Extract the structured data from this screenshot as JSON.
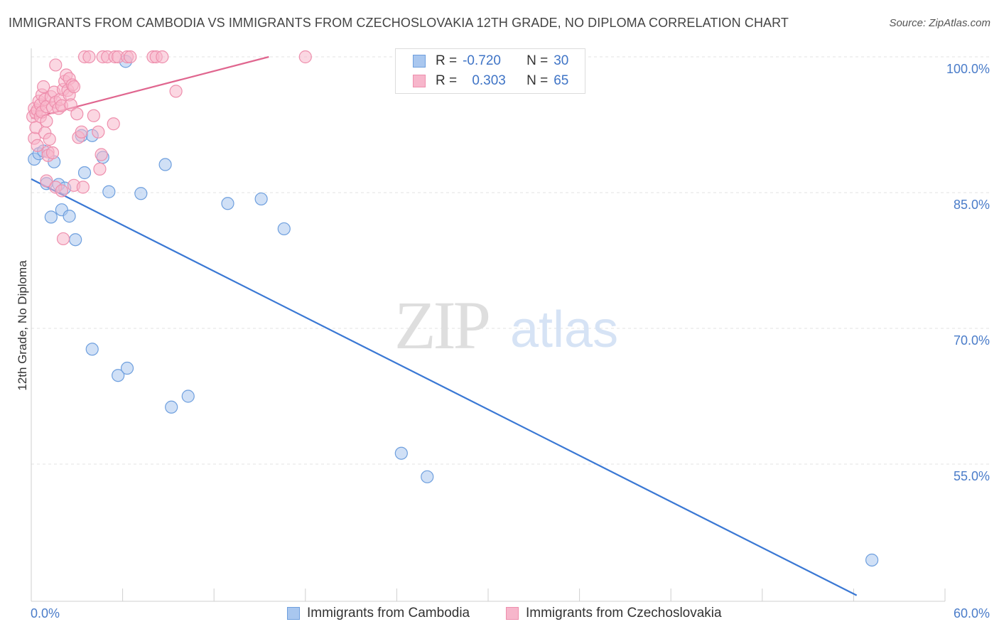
{
  "title": "IMMIGRANTS FROM CAMBODIA VS IMMIGRANTS FROM CZECHOSLOVAKIA 12TH GRADE, NO DIPLOMA CORRELATION CHART",
  "source": "Source: ZipAtlas.com",
  "watermark": {
    "zip": "ZIP",
    "atlas": "atlas"
  },
  "legend": {
    "rows": [
      {
        "r_label": "R =",
        "r_value": "-0.720",
        "n_label": "N =",
        "n_value": "30"
      },
      {
        "r_label": "R =",
        "r_value": "0.303",
        "n_label": "N =",
        "n_value": "65"
      }
    ]
  },
  "colors": {
    "blue_fill": "#a9c7ef",
    "blue_stroke": "#6e9fde",
    "blue_line": "#3a78d4",
    "pink_fill": "#f7b6cb",
    "pink_stroke": "#ee8fad",
    "pink_line": "#e0668f",
    "grid": "#e3e3e3",
    "tick_label": "#4a7cc9"
  },
  "chart_data": {
    "type": "scatter",
    "title": "IMMIGRANTS FROM CAMBODIA VS IMMIGRANTS FROM CZECHOSLOVAKIA 12TH GRADE, NO DIPLOMA CORRELATION CHART",
    "xlabel": "",
    "ylabel": "12th Grade, No Diploma",
    "xlim": [
      0,
      60
    ],
    "ylim": [
      40,
      101
    ],
    "x_tick_labels": {
      "left": "0.0%",
      "right": "60.0%"
    },
    "y_ticks": [
      {
        "value": 100,
        "label": "100.0%"
      },
      {
        "value": 85,
        "label": "85.0%"
      },
      {
        "value": 70,
        "label": "70.0%"
      },
      {
        "value": 55,
        "label": "55.0%"
      }
    ],
    "grid": true,
    "series": [
      {
        "name": "Immigrants from Cambodia",
        "color": "blue",
        "points": [
          [
            0.2,
            88.7
          ],
          [
            0.5,
            89.3
          ],
          [
            0.8,
            89.6
          ],
          [
            1.0,
            86.0
          ],
          [
            1.3,
            82.3
          ],
          [
            1.5,
            88.4
          ],
          [
            1.8,
            85.9
          ],
          [
            2.0,
            83.1
          ],
          [
            2.2,
            85.5
          ],
          [
            2.5,
            82.4
          ],
          [
            2.9,
            79.8
          ],
          [
            3.3,
            91.3
          ],
          [
            3.5,
            87.2
          ],
          [
            4.0,
            91.3
          ],
          [
            4.7,
            88.9
          ],
          [
            5.1,
            85.1
          ],
          [
            7.2,
            84.9
          ],
          [
            6.2,
            99.5
          ],
          [
            8.8,
            88.1
          ],
          [
            12.9,
            83.8
          ],
          [
            15.1,
            84.3
          ],
          [
            16.6,
            81.0
          ],
          [
            4.0,
            67.7
          ],
          [
            5.7,
            64.8
          ],
          [
            6.3,
            65.6
          ],
          [
            9.2,
            61.3
          ],
          [
            10.3,
            62.5
          ],
          [
            24.3,
            56.2
          ],
          [
            26.0,
            53.6
          ],
          [
            55.2,
            44.4
          ]
        ],
        "trend": {
          "x0": 0.0,
          "y0": 86.5,
          "x1": 54.2,
          "y1": 40.5
        }
      },
      {
        "name": "Immigrants from Czechoslovakia",
        "color": "pink",
        "points": [
          [
            0.1,
            93.4
          ],
          [
            0.2,
            91.0
          ],
          [
            0.2,
            94.3
          ],
          [
            0.3,
            92.2
          ],
          [
            0.3,
            93.8
          ],
          [
            0.4,
            90.2
          ],
          [
            0.4,
            94.1
          ],
          [
            0.5,
            95.1
          ],
          [
            0.6,
            93.4
          ],
          [
            0.6,
            94.7
          ],
          [
            0.7,
            95.8
          ],
          [
            0.7,
            93.9
          ],
          [
            0.8,
            96.7
          ],
          [
            0.9,
            91.6
          ],
          [
            0.9,
            95.3
          ],
          [
            1.0,
            94.5
          ],
          [
            1.0,
            92.9
          ],
          [
            1.1,
            89.5
          ],
          [
            1.2,
            90.9
          ],
          [
            1.3,
            95.6
          ],
          [
            1.4,
            94.4
          ],
          [
            1.5,
            96.1
          ],
          [
            1.6,
            95.0
          ],
          [
            1.6,
            99.1
          ],
          [
            1.8,
            94.3
          ],
          [
            1.9,
            95.3
          ],
          [
            2.0,
            94.6
          ],
          [
            2.1,
            96.4
          ],
          [
            2.2,
            97.3
          ],
          [
            2.3,
            98.0
          ],
          [
            2.4,
            96.3
          ],
          [
            2.5,
            95.8
          ],
          [
            2.5,
            97.6
          ],
          [
            2.6,
            94.7
          ],
          [
            2.7,
            96.9
          ],
          [
            2.8,
            96.7
          ],
          [
            3.0,
            93.7
          ],
          [
            3.1,
            91.1
          ],
          [
            3.3,
            91.7
          ],
          [
            3.5,
            100.0
          ],
          [
            3.8,
            100.0
          ],
          [
            4.1,
            93.5
          ],
          [
            4.4,
            91.7
          ],
          [
            4.5,
            87.6
          ],
          [
            4.6,
            89.2
          ],
          [
            4.7,
            100.0
          ],
          [
            5.0,
            100.0
          ],
          [
            5.4,
            92.6
          ],
          [
            5.5,
            100.0
          ],
          [
            5.7,
            100.0
          ],
          [
            6.3,
            100.0
          ],
          [
            6.5,
            100.0
          ],
          [
            8.0,
            100.0
          ],
          [
            8.2,
            100.0
          ],
          [
            8.6,
            100.0
          ],
          [
            9.5,
            96.2
          ],
          [
            18.0,
            100.0
          ],
          [
            1.0,
            86.3
          ],
          [
            1.1,
            89.1
          ],
          [
            1.4,
            89.4
          ],
          [
            1.6,
            85.6
          ],
          [
            2.0,
            85.2
          ],
          [
            2.1,
            79.9
          ],
          [
            2.8,
            85.8
          ],
          [
            3.4,
            85.6
          ]
        ],
        "trend": {
          "x0": 0.0,
          "y0": 93.2,
          "x1": 15.6,
          "y1": 100.0
        }
      }
    ],
    "legend_placement": "top-center"
  }
}
